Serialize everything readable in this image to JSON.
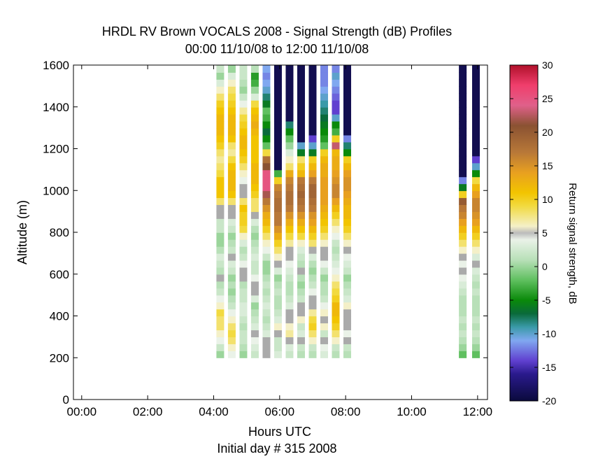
{
  "chart_data": {
    "type": "heatmap",
    "title": "HRDL RV Brown VOCALS 2008 - Signal Strength (dB) Profiles",
    "subtitle": "00:00 11/10/08 to 12:00 11/10/08",
    "xlabel": "Hours UTC",
    "xlabel2": "Initial day # 315  2008",
    "ylabel": "Altitude (m)",
    "colorbar_label": "Return signal strength, dB",
    "x_range_hours": [
      -0.25,
      12.3
    ],
    "ylim": [
      0,
      1600
    ],
    "x_ticks": [
      {
        "value": 0,
        "label": "00:00"
      },
      {
        "value": 2,
        "label": "02:00"
      },
      {
        "value": 4,
        "label": "04:00"
      },
      {
        "value": 6,
        "label": "06:00"
      },
      {
        "value": 8,
        "label": "08:00"
      },
      {
        "value": 10,
        "label": "10:00"
      },
      {
        "value": 12,
        "label": "12:00"
      }
    ],
    "y_ticks": [
      {
        "value": 0,
        "label": "0"
      },
      {
        "value": 200,
        "label": "200"
      },
      {
        "value": 400,
        "label": "400"
      },
      {
        "value": 600,
        "label": "600"
      },
      {
        "value": 800,
        "label": "800"
      },
      {
        "value": 1000,
        "label": "1000"
      },
      {
        "value": 1200,
        "label": "1200"
      },
      {
        "value": 1400,
        "label": "1400"
      },
      {
        "value": 1600,
        "label": "1600"
      }
    ],
    "colorbar": {
      "range": [
        -20,
        30
      ],
      "ticks": [
        {
          "value": 30,
          "label": "30"
        },
        {
          "value": 25,
          "label": "25"
        },
        {
          "value": 20,
          "label": "20"
        },
        {
          "value": 15,
          "label": "15"
        },
        {
          "value": 10,
          "label": "10"
        },
        {
          "value": 5,
          "label": "5"
        },
        {
          "value": 0,
          "label": "0"
        },
        {
          "value": -5,
          "label": "-5"
        },
        {
          "value": -10,
          "label": "-10"
        },
        {
          "value": -15,
          "label": "-15"
        },
        {
          "value": -20,
          "label": "-20"
        }
      ],
      "stops": [
        {
          "v": -20,
          "c": "#0a0a3c"
        },
        {
          "v": -16,
          "c": "#2a1a8c"
        },
        {
          "v": -14,
          "c": "#6040d0"
        },
        {
          "v": -11,
          "c": "#80a8f0"
        },
        {
          "v": -9,
          "c": "#3a9aa8"
        },
        {
          "v": -7,
          "c": "#0a6a3a"
        },
        {
          "v": -5,
          "c": "#0a8a0a"
        },
        {
          "v": -2,
          "c": "#60c060"
        },
        {
          "v": 1,
          "c": "#b8e0b8"
        },
        {
          "v": 4,
          "c": "#eaf2e8"
        },
        {
          "v": 5,
          "c": "#bbbbbb"
        },
        {
          "v": 6,
          "c": "#f4f0c8"
        },
        {
          "v": 9,
          "c": "#f2da40"
        },
        {
          "v": 11,
          "c": "#f2c400"
        },
        {
          "v": 14,
          "c": "#e8a020"
        },
        {
          "v": 17,
          "c": "#b87838"
        },
        {
          "v": 21,
          "c": "#8a5232"
        },
        {
          "v": 24,
          "c": "#e0608a"
        },
        {
          "v": 27,
          "c": "#f03e6c"
        },
        {
          "v": 30,
          "c": "#b0102a"
        }
      ]
    },
    "profiles_y_start": 200,
    "profiles_bin_size": 33.3,
    "missing_color": "#aaaaaa",
    "profiles": [
      {
        "t": 4.2,
        "dB": [
          0,
          2,
          4,
          6,
          8,
          8,
          9,
          6,
          4,
          2,
          1,
          5,
          1,
          2,
          3,
          1,
          0,
          0,
          2,
          2,
          5,
          5,
          8,
          11,
          11,
          11,
          9,
          8,
          7,
          8,
          10,
          11,
          12,
          12,
          12,
          11,
          10,
          8,
          6,
          3,
          0,
          2
        ]
      },
      {
        "t": 4.55,
        "dB": [
          4,
          6,
          8,
          9,
          8,
          6,
          4,
          2,
          1,
          0,
          1,
          0,
          2,
          3,
          5,
          2,
          1,
          0,
          2,
          3,
          5,
          5,
          8,
          11,
          12,
          12,
          12,
          11,
          9,
          7,
          8,
          11,
          12,
          12,
          12,
          11,
          10,
          9,
          8,
          6,
          3,
          0
        ]
      },
      {
        "t": 4.9,
        "dB": [
          0,
          1,
          2,
          2,
          1,
          2,
          3,
          3,
          2,
          2,
          1,
          5,
          5,
          4,
          2,
          1,
          3,
          6,
          9,
          10,
          10,
          11,
          8,
          5,
          5,
          4,
          6,
          8,
          10,
          11,
          12,
          12,
          11,
          10,
          9,
          7,
          4,
          2,
          0,
          1,
          2,
          2
        ]
      },
      {
        "t": 5.25,
        "dB": [
          2,
          3,
          4,
          5,
          3,
          2,
          1,
          0,
          3,
          5,
          5,
          4,
          2,
          2,
          3,
          2,
          1,
          0,
          1,
          3,
          5,
          8,
          8,
          10,
          11,
          12,
          12,
          12,
          11,
          11,
          11,
          11,
          12,
          13,
          12,
          11,
          9,
          3,
          0,
          -3,
          -4,
          1
        ]
      },
      {
        "t": 5.6,
        "dB": [
          5,
          5,
          5,
          3,
          2,
          1,
          2,
          3,
          2,
          1,
          2,
          1,
          0,
          0,
          2,
          4,
          6,
          8,
          10,
          12,
          13,
          15,
          17,
          22,
          25,
          25,
          25,
          21,
          18,
          9,
          -2,
          -5,
          -7,
          -5,
          -3,
          -2,
          -6,
          -8,
          -10,
          -11,
          -12,
          -11
        ]
      },
      {
        "t": 5.95,
        "dB": [
          3,
          2,
          2,
          5,
          6,
          3,
          2,
          1,
          1,
          2,
          1,
          0,
          3,
          5,
          6,
          8,
          10,
          13,
          15,
          17,
          17,
          18,
          18,
          17,
          16,
          10,
          -3,
          -19,
          -19,
          -19,
          -19,
          -19,
          -19,
          -19,
          -19,
          -19,
          -19,
          -19,
          -19,
          -19,
          -19,
          -19
        ]
      },
      {
        "t": 6.3,
        "dB": [
          2,
          3,
          5,
          7,
          6,
          5,
          5,
          3,
          2,
          1,
          1,
          2,
          3,
          4,
          5,
          5,
          7,
          9,
          11,
          13,
          15,
          17,
          18,
          18,
          17,
          16,
          13,
          8,
          6,
          3,
          0,
          -2,
          -5,
          -8,
          -19,
          -19,
          -19,
          -19,
          -19,
          -19,
          -19,
          -19
        ]
      },
      {
        "t": 6.65,
        "dB": [
          1,
          2,
          5,
          3,
          2,
          6,
          5,
          5,
          2,
          1,
          0,
          1,
          5,
          1,
          2,
          3,
          6,
          9,
          11,
          13,
          15,
          17,
          18,
          19,
          18,
          17,
          12,
          10,
          8,
          -6,
          -10,
          -19,
          -19,
          -19,
          -19,
          -19,
          -19,
          -19,
          -19,
          -19,
          -19,
          -19
        ]
      },
      {
        "t": 7.0,
        "dB": [
          1,
          2,
          6,
          8,
          10,
          9,
          7,
          5,
          5,
          4,
          2,
          1,
          0,
          1,
          3,
          5,
          8,
          10,
          12,
          14,
          15,
          17,
          18,
          19,
          19,
          17,
          14,
          12,
          10,
          -6,
          -10,
          -14,
          -19,
          -19,
          -19,
          -19,
          -19,
          -19,
          -19,
          -19,
          -19,
          -19
        ]
      },
      {
        "t": 7.35,
        "dB": [
          3,
          4,
          5,
          2,
          6,
          5,
          6,
          4,
          2,
          1,
          1,
          0,
          2,
          4,
          5,
          5,
          6,
          8,
          10,
          11,
          12,
          13,
          14,
          14,
          14,
          14,
          13,
          13,
          12,
          10,
          -2,
          -4,
          -5,
          -6,
          -7,
          -8,
          -9,
          -10,
          -11,
          -12,
          -12,
          -12
        ]
      },
      {
        "t": 7.7,
        "dB": [
          1,
          2,
          6,
          8,
          10,
          11,
          12,
          12,
          10,
          9,
          8,
          6,
          4,
          3,
          2,
          1,
          2,
          4,
          6,
          8,
          10,
          12,
          14,
          16,
          16,
          15,
          14,
          13,
          13,
          12,
          23,
          10,
          -3,
          -5,
          -10,
          -14,
          -14,
          -13,
          -12,
          -11,
          -10,
          -12
        ]
      },
      {
        "t": 8.05,
        "dB": [
          1,
          2,
          5,
          4,
          5,
          5,
          5,
          6,
          3,
          2,
          1,
          0,
          2,
          3,
          4,
          5,
          6,
          8,
          10,
          11,
          12,
          12,
          13,
          14,
          15,
          15,
          14,
          12,
          10,
          -5,
          -8,
          -12,
          -19,
          -19,
          -19,
          -19,
          -19,
          -19,
          -19,
          -19,
          -19,
          -19
        ]
      },
      {
        "t": 11.55,
        "dB": [
          -2,
          0,
          1,
          2,
          1,
          2,
          1,
          1,
          1,
          2,
          3,
          4,
          5,
          4,
          5,
          6,
          8,
          10,
          12,
          14,
          16,
          17,
          20,
          10,
          -6,
          -12,
          -19,
          -19,
          -19,
          -19,
          -19,
          -19,
          -19,
          -19,
          -19,
          -19,
          -19,
          -19,
          -19,
          -19,
          -19,
          -19
        ]
      },
      {
        "t": 11.95,
        "dB": [
          -2,
          0,
          1,
          2,
          1,
          2,
          1,
          1,
          1,
          2,
          1,
          2,
          3,
          5,
          3,
          6,
          8,
          10,
          12,
          14,
          15,
          16,
          16,
          14,
          12,
          9,
          -5,
          -10,
          -14,
          -19,
          -19,
          -19,
          -19,
          -19,
          -19,
          -19,
          -19,
          -19,
          -19,
          -19,
          -19,
          -19
        ]
      }
    ]
  }
}
